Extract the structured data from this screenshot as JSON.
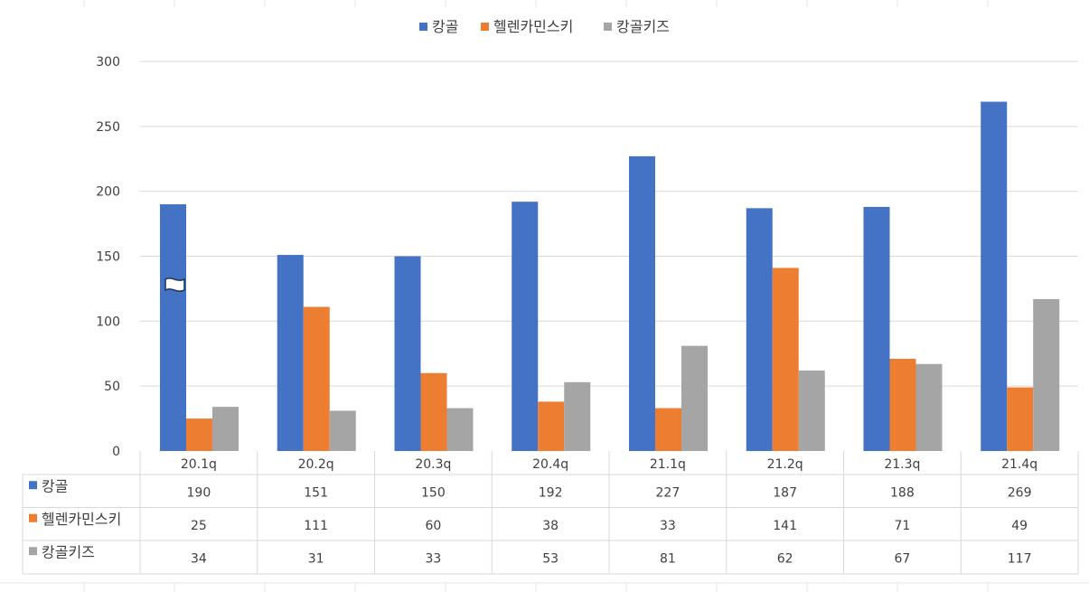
{
  "chart_data": {
    "type": "bar",
    "categories": [
      "20.1q",
      "20.2q",
      "20.3q",
      "20.4q",
      "21.1q",
      "21.2q",
      "21.3q",
      "21.4q"
    ],
    "series": [
      {
        "name": "캉골",
        "values": [
          190,
          151,
          150,
          192,
          227,
          187,
          188,
          269
        ],
        "color": "#4472C4"
      },
      {
        "name": "헬렌카민스키",
        "values": [
          25,
          111,
          60,
          38,
          33,
          141,
          71,
          49
        ],
        "color": "#ED7D31"
      },
      {
        "name": "캉골키즈",
        "values": [
          34,
          31,
          33,
          53,
          81,
          62,
          67,
          117
        ],
        "color": "#A5A5A5"
      }
    ],
    "ylim": [
      0,
      300
    ],
    "yticks": [
      0,
      50,
      100,
      150,
      200,
      250,
      300
    ],
    "grid": true,
    "legend": "top-center",
    "data_table": true
  }
}
